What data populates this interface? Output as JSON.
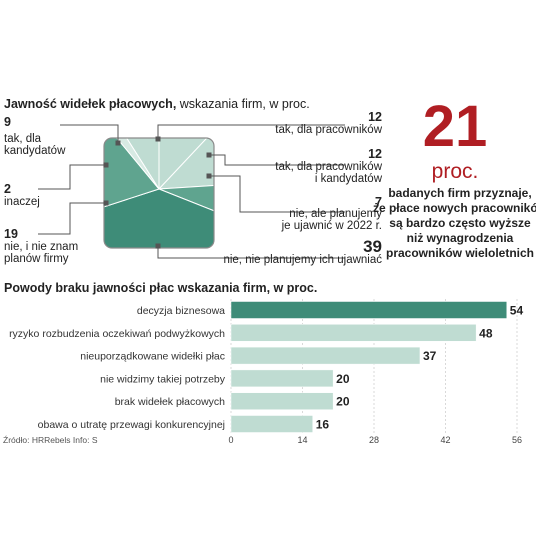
{
  "top": {
    "title_bold": "Jawność widełek płacowych,",
    "title_thin": " wskazania firm, w proc."
  },
  "hero": {
    "number": "21",
    "unit": "proc.",
    "lines": [
      "badanych firm przyznaje,",
      "że płace nowych pracowników",
      "są bardzo często wyższe",
      "niż wynagrodzenia",
      "pracowników wieloletnich"
    ]
  },
  "source": "Źródło: HRRebels  Info: S",
  "colors": {
    "dark": "#3e8c78",
    "mid": "#5fa48f",
    "light": "#bfdcd2",
    "pale": "#d7eae3",
    "accent": "#b01e23"
  },
  "chart_data": [
    {
      "type": "pie",
      "title": "Jawność widełek płacowych, wskazania firm, w proc.",
      "slices": [
        {
          "label": "tak, dla kandydatów",
          "label_lines": [
            "tak, dla",
            "kandydatów"
          ],
          "value": 9
        },
        {
          "label": "tak, dla pracowników",
          "label_lines": [
            "tak, dla pracowników"
          ],
          "value": 12
        },
        {
          "label": "tak, dla pracowników i kandydatów",
          "label_lines": [
            "tak, dla pracowników",
            "i kandydatów"
          ],
          "value": 12
        },
        {
          "label": "nie, ale planujemy je ujawnić w 2022 r.",
          "label_lines": [
            "nie, ale planujemy",
            "je ujawnić w 2022 r."
          ],
          "value": 7
        },
        {
          "label": "nie, nie planujemy ich ujawniać",
          "label_lines": [
            "nie, nie planujemy ich ujawniać"
          ],
          "value": 39
        },
        {
          "label": "nie, i nie znam planów firmy",
          "label_lines": [
            "nie, i nie znam",
            "planów firmy"
          ],
          "value": 19
        },
        {
          "label": "inaczej",
          "label_lines": [
            "inaczej"
          ],
          "value": 2
        }
      ]
    },
    {
      "type": "bar",
      "orientation": "horizontal",
      "title": "Powody braku jawności płac wskazania firm, w proc.",
      "categories": [
        "decyzja biznesowa",
        "ryzyko  rozbudzenia oczekiwań podwyżkowych",
        "nieuporządkowane widełki płac",
        "nie widzimy takiej potrzeby",
        "brak widełek płacowych",
        "obawa o utratę przewagi konkurencyjnej"
      ],
      "values": [
        54,
        48,
        37,
        20,
        20,
        16
      ],
      "xlim": [
        0,
        56
      ],
      "xticks": [
        "0",
        "14",
        "28",
        "42",
        "56"
      ]
    }
  ]
}
